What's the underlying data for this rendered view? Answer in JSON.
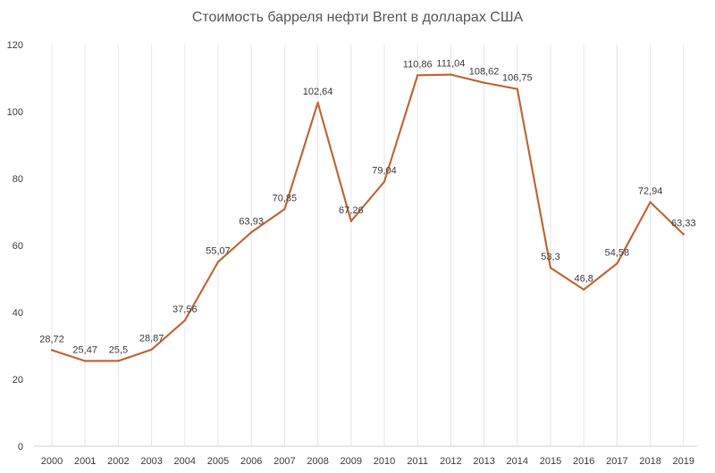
{
  "chart_data": {
    "type": "line",
    "title": "Стоимость барреля нефти Brent в долларах США",
    "xlabel": "",
    "ylabel": "",
    "categories": [
      "2000",
      "2001",
      "2002",
      "2003",
      "2004",
      "2005",
      "2006",
      "2007",
      "2008",
      "2009",
      "2010",
      "2011",
      "2012",
      "2013",
      "2014",
      "2015",
      "2016",
      "2017",
      "2018",
      "2019"
    ],
    "series": [
      {
        "values": [
          28.72,
          25.47,
          25.5,
          28.87,
          37.56,
          55.07,
          63.93,
          70.85,
          102.64,
          67.26,
          79.04,
          110.86,
          111.04,
          108.62,
          106.75,
          53.3,
          46.8,
          54.58,
          72.94,
          63.33
        ],
        "labels": [
          "28,72",
          "25,47",
          "25,5",
          "28,87",
          "37,56",
          "55,07",
          "63,93",
          "70,85",
          "102,64",
          "67,26",
          "79,04",
          "110,86",
          "111,04",
          "108,62",
          "106,75",
          "53,3",
          "46,8",
          "54,58",
          "72,94",
          "63,33"
        ],
        "color": "#C0693B"
      }
    ],
    "yticks": [
      "0",
      "20",
      "40",
      "60",
      "80",
      "100",
      "120"
    ],
    "ylim": [
      0,
      120
    ],
    "grid": "vertical",
    "legend": "none"
  }
}
